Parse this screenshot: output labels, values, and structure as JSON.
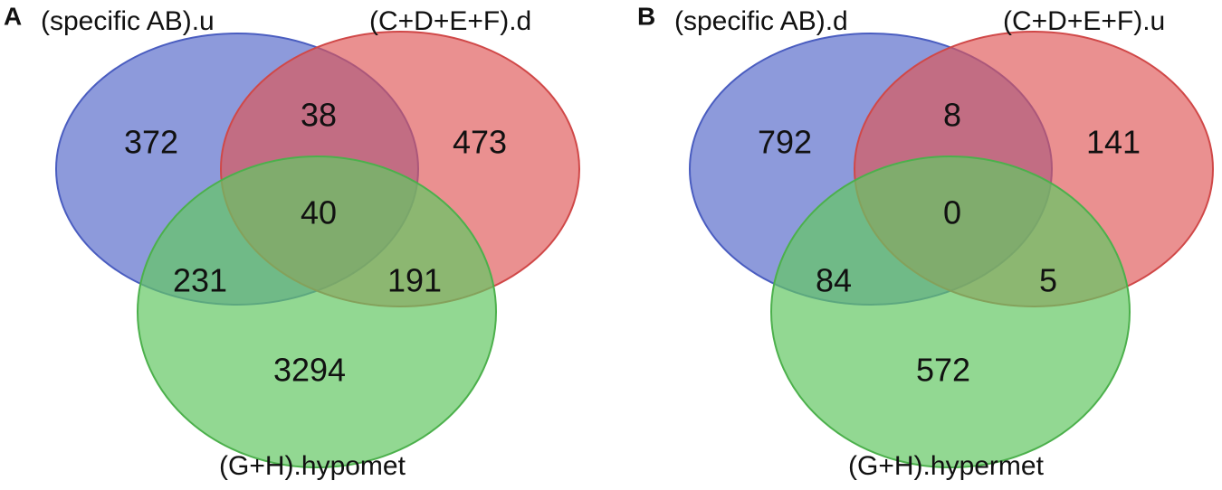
{
  "panels": [
    {
      "label": "A",
      "sets": [
        "(specific AB).u",
        "(C+D+E+F).d",
        "(G+H).hypomet"
      ],
      "regions": [
        372,
        38,
        473,
        40,
        231,
        191,
        3294
      ]
    },
    {
      "label": "B",
      "sets": [
        "(specific AB).d",
        "(C+D+E+F).u",
        "(G+H).hypermet"
      ],
      "regions": [
        792,
        8,
        141,
        0,
        84,
        5,
        572
      ]
    }
  ]
}
